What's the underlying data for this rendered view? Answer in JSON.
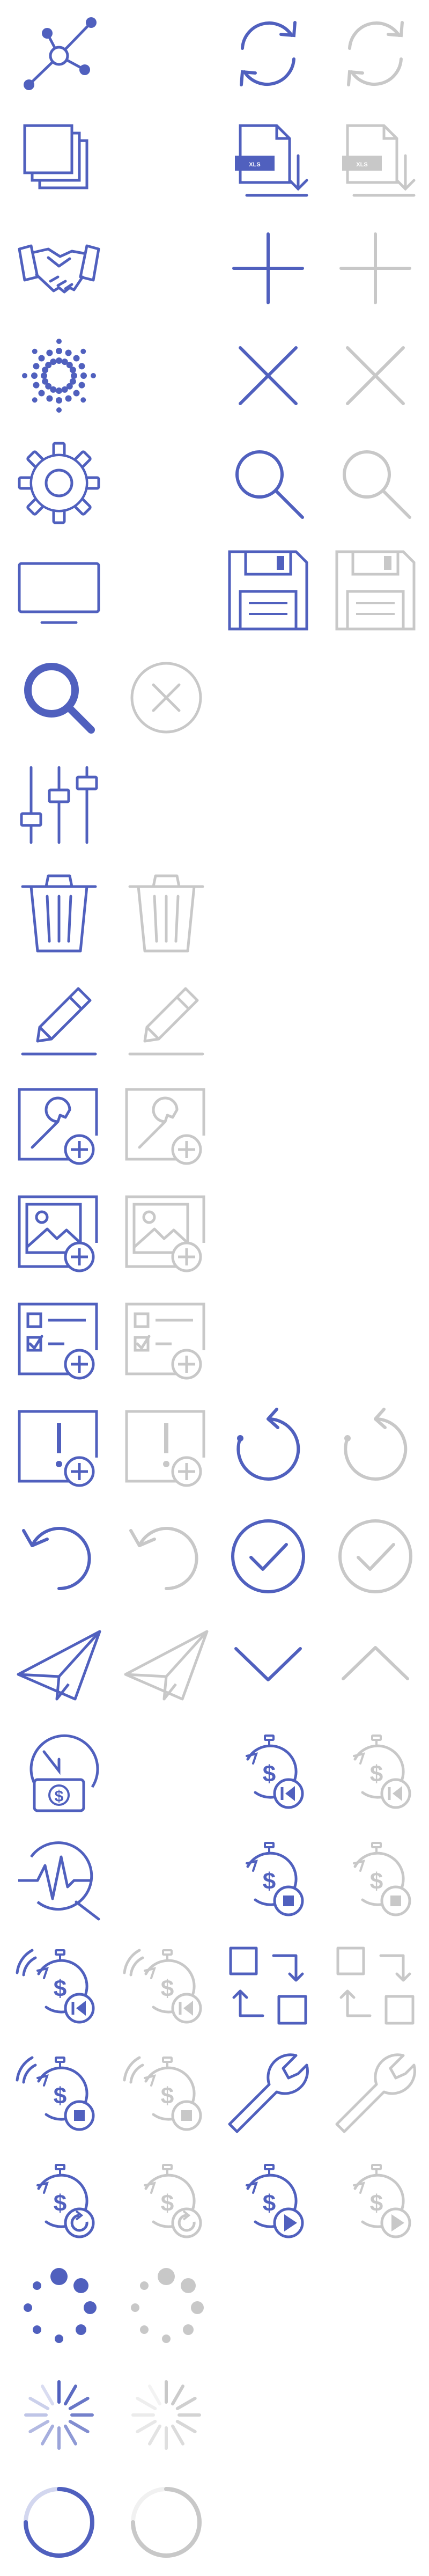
{
  "colors": {
    "primary": "#5060be",
    "disabled": "#c8c8c8",
    "background": "#ffffff"
  },
  "icons": [
    {
      "name": "network-nodes-icon",
      "state": "active",
      "row": 0,
      "col": 0
    },
    {
      "name": "sync-icon",
      "state": "active",
      "row": 0,
      "col": 2
    },
    {
      "name": "sync-icon",
      "state": "disabled",
      "row": 0,
      "col": 3
    },
    {
      "name": "layers-icon",
      "state": "active",
      "row": 1,
      "col": 0
    },
    {
      "name": "export-xls-icon",
      "state": "active",
      "row": 1,
      "col": 2,
      "label": "XLS"
    },
    {
      "name": "export-xls-icon",
      "state": "disabled",
      "row": 1,
      "col": 3,
      "label": "XLS"
    },
    {
      "name": "handshake-icon",
      "state": "active",
      "row": 2,
      "col": 0
    },
    {
      "name": "plus-icon",
      "state": "active",
      "row": 2,
      "col": 2
    },
    {
      "name": "plus-icon",
      "state": "disabled",
      "row": 2,
      "col": 3
    },
    {
      "name": "burst-icon",
      "state": "active",
      "row": 3,
      "col": 0
    },
    {
      "name": "close-icon",
      "state": "active",
      "row": 3,
      "col": 2
    },
    {
      "name": "close-icon",
      "state": "disabled",
      "row": 3,
      "col": 3
    },
    {
      "name": "gear-icon",
      "state": "active",
      "row": 4,
      "col": 0
    },
    {
      "name": "search-icon",
      "state": "active",
      "row": 4,
      "col": 2
    },
    {
      "name": "search-icon",
      "state": "disabled",
      "row": 4,
      "col": 3
    },
    {
      "name": "monitor-icon",
      "state": "active",
      "row": 5,
      "col": 0
    },
    {
      "name": "save-icon",
      "state": "active",
      "row": 5,
      "col": 2
    },
    {
      "name": "save-icon",
      "state": "disabled",
      "row": 5,
      "col": 3
    },
    {
      "name": "search-bold-icon",
      "state": "active",
      "row": 6,
      "col": 0
    },
    {
      "name": "close-circle-icon",
      "state": "disabled",
      "row": 6,
      "col": 1
    },
    {
      "name": "sliders-icon",
      "state": "active",
      "row": 7,
      "col": 0
    },
    {
      "name": "trash-icon",
      "state": "active",
      "row": 8,
      "col": 0
    },
    {
      "name": "trash-icon",
      "state": "disabled",
      "row": 8,
      "col": 1
    },
    {
      "name": "pencil-icon",
      "state": "active",
      "row": 9,
      "col": 0
    },
    {
      "name": "pencil-icon",
      "state": "disabled",
      "row": 9,
      "col": 1
    },
    {
      "name": "add-wrench-card-icon",
      "state": "active",
      "row": 10,
      "col": 0
    },
    {
      "name": "add-wrench-card-icon",
      "state": "disabled",
      "row": 10,
      "col": 1
    },
    {
      "name": "add-image-icon",
      "state": "active",
      "row": 11,
      "col": 0
    },
    {
      "name": "add-image-icon",
      "state": "disabled",
      "row": 11,
      "col": 1
    },
    {
      "name": "add-checklist-icon",
      "state": "active",
      "row": 12,
      "col": 0
    },
    {
      "name": "add-checklist-icon",
      "state": "disabled",
      "row": 12,
      "col": 1
    },
    {
      "name": "add-alert-card-icon",
      "state": "active",
      "row": 13,
      "col": 0
    },
    {
      "name": "add-alert-card-icon",
      "state": "disabled",
      "row": 13,
      "col": 1
    },
    {
      "name": "rotate-clockwise-icon",
      "state": "active",
      "row": 13,
      "col": 2
    },
    {
      "name": "rotate-clockwise-icon",
      "state": "disabled",
      "row": 13,
      "col": 3
    },
    {
      "name": "undo-icon",
      "state": "active",
      "row": 14,
      "col": 0
    },
    {
      "name": "undo-icon",
      "state": "disabled",
      "row": 14,
      "col": 1
    },
    {
      "name": "check-circle-icon",
      "state": "active",
      "row": 14,
      "col": 2
    },
    {
      "name": "check-circle-icon",
      "state": "disabled",
      "row": 14,
      "col": 3
    },
    {
      "name": "paper-plane-icon",
      "state": "active",
      "row": 15,
      "col": 0
    },
    {
      "name": "paper-plane-icon",
      "state": "disabled",
      "row": 15,
      "col": 1
    },
    {
      "name": "chevron-down-icon",
      "state": "active",
      "row": 15,
      "col": 2
    },
    {
      "name": "chevron-up-icon",
      "state": "disabled",
      "row": 15,
      "col": 3
    },
    {
      "name": "clock-money-icon",
      "state": "active",
      "row": 16,
      "col": 0,
      "label": "$"
    },
    {
      "name": "stopwatch-money-rewind-icon",
      "state": "active",
      "row": 16,
      "col": 2,
      "label": "$"
    },
    {
      "name": "stopwatch-money-rewind-icon",
      "state": "disabled",
      "row": 16,
      "col": 3,
      "label": "$"
    },
    {
      "name": "pulse-search-icon",
      "state": "active",
      "row": 17,
      "col": 0
    },
    {
      "name": "stopwatch-money-stop-icon",
      "state": "active",
      "row": 17,
      "col": 2,
      "label": "$"
    },
    {
      "name": "stopwatch-money-stop-icon",
      "state": "disabled",
      "row": 17,
      "col": 3,
      "label": "$"
    },
    {
      "name": "stopwatch-money-rewind-signal-icon",
      "state": "active",
      "row": 18,
      "col": 0,
      "label": "$"
    },
    {
      "name": "stopwatch-money-rewind-signal-icon",
      "state": "disabled",
      "row": 18,
      "col": 1,
      "label": "$"
    },
    {
      "name": "swap-squares-icon",
      "state": "active",
      "row": 18,
      "col": 2
    },
    {
      "name": "swap-squares-icon",
      "state": "disabled",
      "row": 18,
      "col": 3
    },
    {
      "name": "stopwatch-money-stop-signal-icon",
      "state": "active",
      "row": 19,
      "col": 0,
      "label": "$"
    },
    {
      "name": "stopwatch-money-stop-signal-icon",
      "state": "disabled",
      "row": 19,
      "col": 1,
      "label": "$"
    },
    {
      "name": "wrench-icon",
      "state": "active",
      "row": 19,
      "col": 2
    },
    {
      "name": "wrench-icon",
      "state": "disabled",
      "row": 19,
      "col": 3
    },
    {
      "name": "stopwatch-money-reload-icon",
      "state": "active",
      "row": 20,
      "col": 0,
      "label": "$"
    },
    {
      "name": "stopwatch-money-reload-icon",
      "state": "disabled",
      "row": 20,
      "col": 1,
      "label": "$"
    },
    {
      "name": "stopwatch-money-play-icon",
      "state": "active",
      "row": 20,
      "col": 2,
      "label": "$"
    },
    {
      "name": "stopwatch-money-play-icon",
      "state": "disabled",
      "row": 20,
      "col": 3,
      "label": "$"
    },
    {
      "name": "loading-dots-icon",
      "state": "active",
      "row": 21,
      "col": 0
    },
    {
      "name": "loading-dots-icon",
      "state": "disabled",
      "row": 21,
      "col": 1
    },
    {
      "name": "loading-spokes-icon",
      "state": "active",
      "row": 22,
      "col": 0
    },
    {
      "name": "loading-spokes-icon",
      "state": "disabled",
      "row": 22,
      "col": 1
    },
    {
      "name": "loading-ring-icon",
      "state": "active",
      "row": 23,
      "col": 0
    },
    {
      "name": "loading-ring-icon",
      "state": "disabled",
      "row": 23,
      "col": 1
    }
  ]
}
